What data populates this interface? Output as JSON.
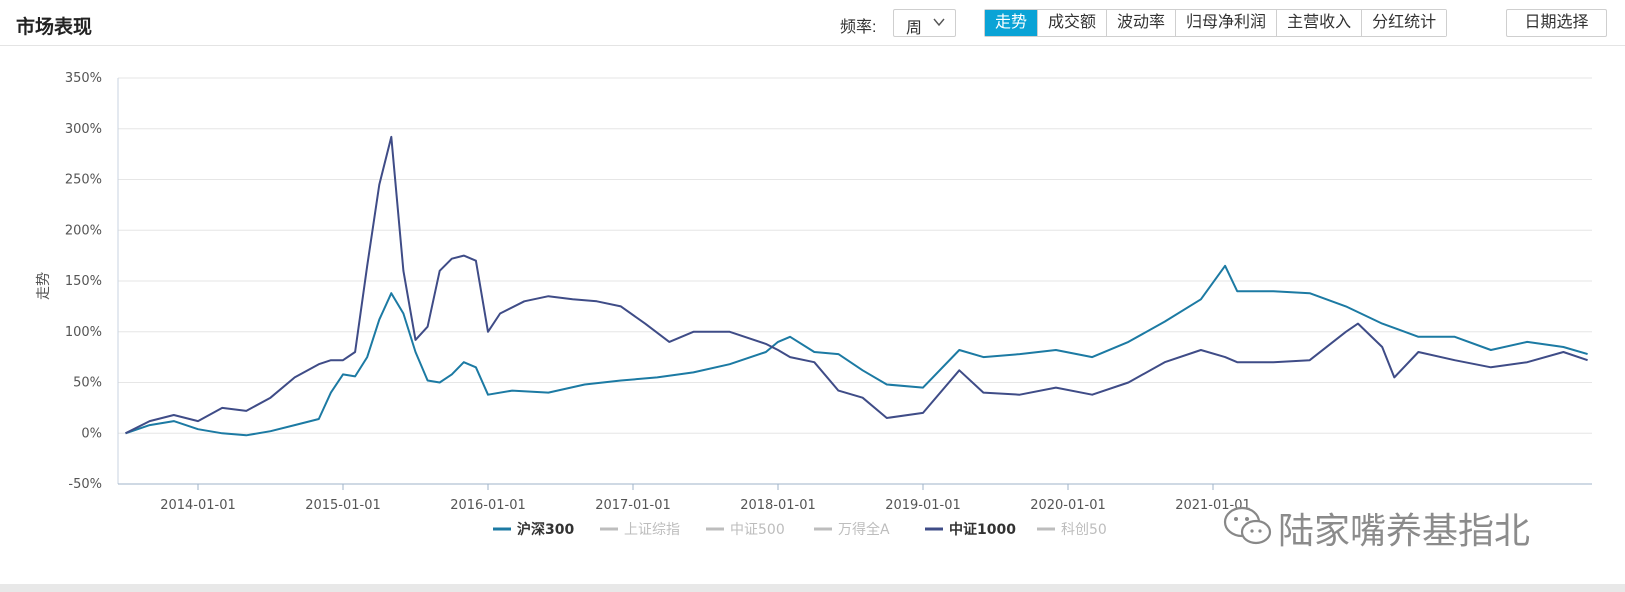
{
  "header": {
    "title": "市场表现",
    "freq_label": "频率:",
    "freq_value": "周",
    "tabs": [
      {
        "label": "走势",
        "active": true
      },
      {
        "label": "成交额",
        "active": false
      },
      {
        "label": "波动率",
        "active": false
      },
      {
        "label": "归母净利润",
        "active": false
      },
      {
        "label": "主营收入",
        "active": false
      },
      {
        "label": "分红统计",
        "active": false
      }
    ],
    "date_button": "日期选择"
  },
  "watermark": {
    "text": "陆家嘴养基指北",
    "icon": "wechat-icon"
  },
  "colors": {
    "accent": "#0aa3d6",
    "hs300": "#1c7aa3",
    "zz1000": "#3f4c87",
    "grid": "#e6e6e6",
    "muted": "#bdbdbd"
  },
  "chart_data": {
    "type": "line",
    "ylabel": "走势",
    "y_ticks": [
      "350%",
      "300%",
      "250%",
      "200%",
      "150%",
      "100%",
      "50%",
      "0%",
      "-50%"
    ],
    "ylim": [
      -50,
      350
    ],
    "x_ticks": [
      "2014-01-01",
      "2015-01-01",
      "2016-01-01",
      "2017-01-01",
      "2018-01-01",
      "2019-01-01",
      "2020-01-01",
      "2021-01-01"
    ],
    "legend_placement": "bottom-center",
    "legend": [
      {
        "name": "沪深300",
        "active": true
      },
      {
        "name": "上证综指",
        "active": false
      },
      {
        "name": "中证500",
        "active": false
      },
      {
        "name": "万得全A",
        "active": false
      },
      {
        "name": "中证1000",
        "active": true
      },
      {
        "name": "科创50",
        "active": false
      }
    ],
    "series": [
      {
        "name": "沪深300",
        "x": [
          "2013-07",
          "2013-09",
          "2013-11",
          "2014-01",
          "2014-03",
          "2014-05",
          "2014-07",
          "2014-09",
          "2014-11",
          "2014-12",
          "2015-01",
          "2015-02",
          "2015-03",
          "2015-04",
          "2015-05",
          "2015-06",
          "2015-07",
          "2015-08",
          "2015-09",
          "2015-10",
          "2015-11",
          "2015-12",
          "2016-01",
          "2016-03",
          "2016-06",
          "2016-09",
          "2016-12",
          "2017-03",
          "2017-06",
          "2017-09",
          "2017-12",
          "2018-01",
          "2018-02",
          "2018-04",
          "2018-06",
          "2018-08",
          "2018-10",
          "2019-01",
          "2019-04",
          "2019-06",
          "2019-09",
          "2019-12",
          "2020-03",
          "2020-06",
          "2020-09",
          "2020-12",
          "2021-02",
          "2021-03",
          "2021-06",
          "2021-09",
          "2021-12",
          "2022-03",
          "2022-06",
          "2022-09",
          "2022-12",
          "2023-03",
          "2023-06",
          "2023-08"
        ],
        "values": [
          0,
          8,
          12,
          4,
          0,
          -2,
          2,
          8,
          14,
          40,
          58,
          56,
          75,
          112,
          138,
          118,
          80,
          52,
          50,
          58,
          70,
          65,
          38,
          42,
          40,
          48,
          52,
          55,
          60,
          68,
          80,
          90,
          95,
          80,
          78,
          62,
          48,
          45,
          82,
          75,
          78,
          82,
          75,
          90,
          110,
          132,
          165,
          140,
          140,
          138,
          125,
          108,
          95,
          95,
          82,
          90,
          85,
          78
        ]
      },
      {
        "name": "中证1000",
        "x": [
          "2013-07",
          "2013-09",
          "2013-11",
          "2014-01",
          "2014-03",
          "2014-05",
          "2014-07",
          "2014-09",
          "2014-11",
          "2014-12",
          "2015-01",
          "2015-02",
          "2015-03",
          "2015-04",
          "2015-05",
          "2015-06",
          "2015-07",
          "2015-08",
          "2015-09",
          "2015-10",
          "2015-11",
          "2015-12",
          "2016-01",
          "2016-02",
          "2016-04",
          "2016-06",
          "2016-08",
          "2016-10",
          "2016-12",
          "2017-02",
          "2017-04",
          "2017-06",
          "2017-09",
          "2017-12",
          "2018-01",
          "2018-02",
          "2018-04",
          "2018-06",
          "2018-08",
          "2018-10",
          "2019-01",
          "2019-04",
          "2019-06",
          "2019-09",
          "2019-12",
          "2020-03",
          "2020-06",
          "2020-09",
          "2020-12",
          "2021-02",
          "2021-03",
          "2021-06",
          "2021-09",
          "2021-12",
          "2022-01",
          "2022-03",
          "2022-04",
          "2022-06",
          "2022-09",
          "2022-12",
          "2023-03",
          "2023-06",
          "2023-08"
        ],
        "values": [
          0,
          12,
          18,
          12,
          25,
          22,
          35,
          55,
          68,
          72,
          72,
          80,
          165,
          245,
          292,
          160,
          92,
          105,
          160,
          172,
          175,
          170,
          100,
          118,
          130,
          135,
          132,
          130,
          125,
          108,
          90,
          100,
          100,
          88,
          82,
          75,
          70,
          42,
          35,
          15,
          20,
          62,
          40,
          38,
          45,
          38,
          50,
          70,
          82,
          75,
          70,
          70,
          72,
          100,
          108,
          85,
          55,
          80,
          72,
          65,
          70,
          80,
          72
        ]
      }
    ]
  }
}
